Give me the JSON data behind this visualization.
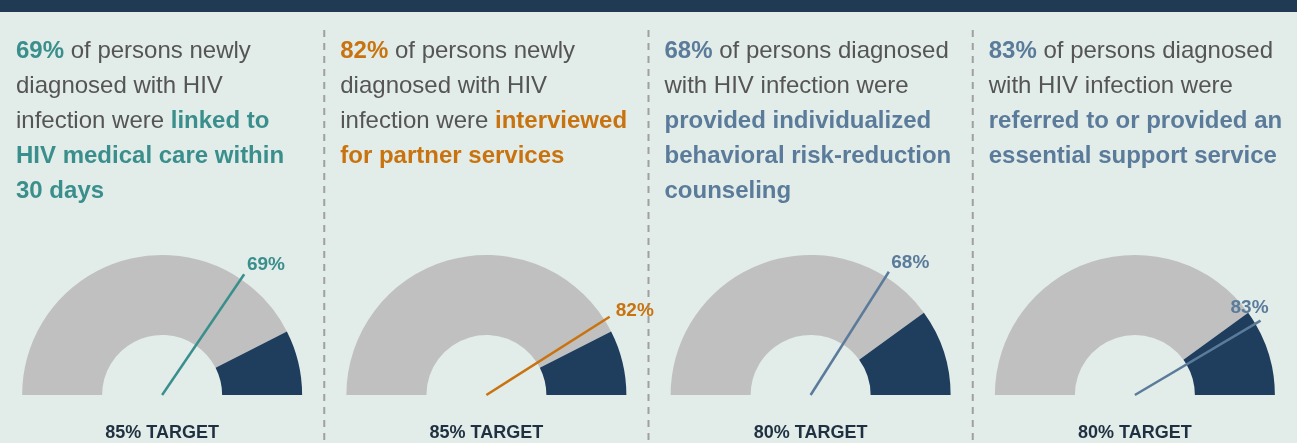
{
  "chart_data": [
    {
      "type": "donut",
      "title": "69% of persons newly diagnosed with HIV infection were",
      "subtitle": "linked to HIV medical care within 30 days",
      "categories": [
        null,
        null,
        null
      ],
      "values": [
        69,
        16,
        15
      ],
      "colors": [
        "#c0c0c0",
        "#c0c0c0",
        "#1f3d5c"
      ],
      "color": "#3a8f8c",
      "annotations": [
        "69%",
        "85% TARGET"
      ]
    },
    {
      "type": "donut",
      "title": "82% of persons newly diagnosed with HIV infection were",
      "subtitle": "interviewed for partner services",
      "categories": [
        null,
        null,
        null
      ],
      "values": [
        82,
        3,
        15
      ],
      "colors": [
        "#c0c0c0",
        "#c0c0c0",
        "#1f3d5c"
      ],
      "color": "#c9730f",
      "annotations": [
        "82%",
        "85% TARGET"
      ]
    },
    {
      "type": "donut",
      "title": "68% of persons diagnosed with HIV infection were",
      "subtitle": "provided individualized behavioral risk-reduction counseling",
      "categories": [
        null,
        null,
        null
      ],
      "values": [
        68,
        12,
        20
      ],
      "colors": [
        "#c0c0c0",
        "#c0c0c0",
        "#1f3d5c"
      ],
      "color": "#5b7b9b",
      "annotations": [
        "68%",
        "80% TARGET"
      ]
    },
    {
      "type": "donut",
      "title": "83% of persons diagnosed with HIV infection were",
      "subtitle": "referred to or provided an essential support service",
      "categories": [
        null,
        null,
        null
      ],
      "values": [
        80,
        3,
        17
      ],
      "colors": [
        "#c0c0c0",
        "#1f3d5c",
        "#1f3d5c"
      ],
      "color": "#5b7b9b",
      "annotations": [
        "83%",
        "80% TARGET"
      ]
    }
  ]
}
